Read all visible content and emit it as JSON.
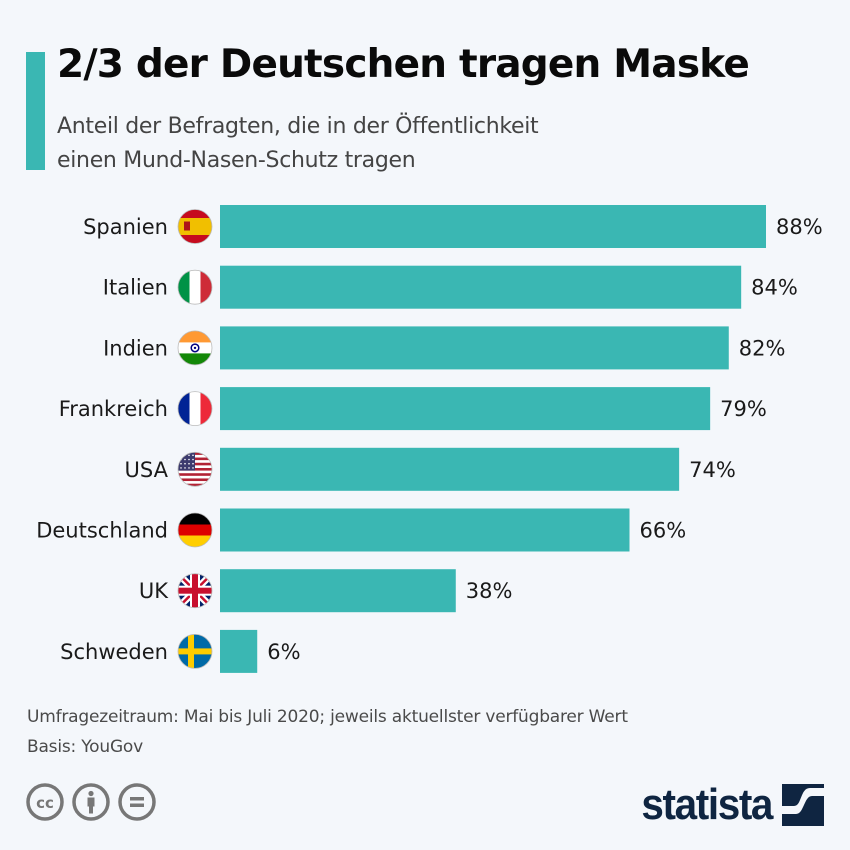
{
  "header": {
    "title": "2/3 der Deutschen tragen Maske",
    "subtitle_lines": [
      "Anteil der Befragten, die in der Öffentlichkeit",
      "einen Mund-Nasen-Schutz tragen"
    ],
    "accent_color": "#3ab7b3"
  },
  "chart_data": {
    "type": "bar",
    "orientation": "horizontal",
    "title": "2/3 der Deutschen tragen Maske",
    "subtitle": "Anteil der Befragten, die in der Öffentlichkeit einen Mund-Nasen-Schutz tragen",
    "categories": [
      "Spanien",
      "Italien",
      "Indien",
      "Frankreich",
      "USA",
      "Deutschland",
      "UK",
      "Schweden"
    ],
    "values": [
      88,
      84,
      82,
      79,
      74,
      66,
      38,
      6
    ],
    "value_labels": [
      "88%",
      "84%",
      "82%",
      "79%",
      "74%",
      "66%",
      "38%",
      "6%"
    ],
    "flags": [
      "flag-spain",
      "flag-italy",
      "flag-india",
      "flag-france",
      "flag-usa",
      "flag-germany",
      "flag-uk",
      "flag-sweden"
    ],
    "unit": "%",
    "xlabel": "",
    "ylabel": "",
    "xlim": [
      0,
      100
    ],
    "grid": false,
    "legend": "none",
    "bar_color": "#3ab7b3"
  },
  "footer": {
    "note": "Umfragezeitraum: Mai bis Juli 2020; jeweils aktuellster verfügbarer Wert",
    "source": "Basis: YouGov",
    "license_icons": [
      "cc-icon",
      "attribution-icon",
      "no-derivatives-icon"
    ],
    "brand": "statista",
    "brand_color": "#0f2541"
  }
}
